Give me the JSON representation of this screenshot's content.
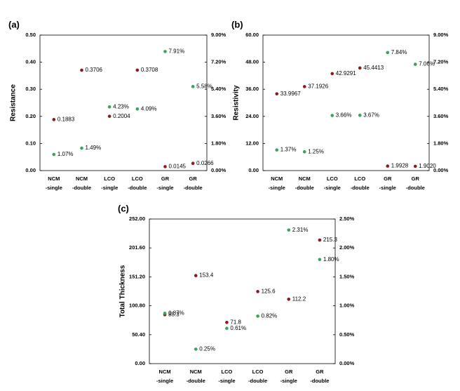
{
  "chart_data": [
    {
      "type": "scatter",
      "label": "(a)",
      "y_label": "Resistance",
      "categories": [
        [
          "NCM",
          "-single"
        ],
        [
          "NCM",
          "-double"
        ],
        [
          "LCO",
          "-single"
        ],
        [
          "LCO",
          "-double"
        ],
        [
          "GR",
          "-single"
        ],
        [
          "GR",
          "-double"
        ]
      ],
      "ylim": [
        0,
        0.5
      ],
      "yticks": [
        {
          "value": 0,
          "label": "0.00"
        },
        {
          "value": 0.1,
          "label": "0.10"
        },
        {
          "value": 0.2,
          "label": "0.20"
        },
        {
          "value": 0.3,
          "label": "0.30"
        },
        {
          "value": 0.4,
          "label": "0.40"
        },
        {
          "value": 0.5,
          "label": "0.50"
        }
      ],
      "y2lim": [
        0,
        9
      ],
      "y2ticks": [
        {
          "value": 0,
          "label": "0.00%"
        },
        {
          "value": 1.8,
          "label": "1.80%"
        },
        {
          "value": 3.6,
          "label": "3.60%"
        },
        {
          "value": 5.4,
          "label": "5.40%"
        },
        {
          "value": 7.2,
          "label": "7.20%"
        },
        {
          "value": 9,
          "label": "9.00%"
        }
      ],
      "series": [
        {
          "color": "#8b1a1a",
          "values": [
            0.1883,
            0.3706,
            0.2004,
            0.3708,
            0.0145,
            0.0266
          ]
        },
        {
          "color": "#3aa35a",
          "axis": "y2",
          "values": [
            1.07,
            1.49,
            4.23,
            4.09,
            7.91,
            5.58
          ],
          "value_labels": [
            "1.07%",
            "1.49%",
            "4.23%",
            "4.09%",
            "7.91%",
            "5.58%"
          ]
        }
      ]
    },
    {
      "type": "scatter",
      "label": "(b)",
      "y_label": "Resistivity",
      "categories": [
        [
          "NCM",
          "-single"
        ],
        [
          "NCM",
          "-double"
        ],
        [
          "LCO",
          "-single"
        ],
        [
          "LCO",
          "-double"
        ],
        [
          "GR",
          "-single"
        ],
        [
          "GR",
          "-double"
        ]
      ],
      "ylim": [
        0,
        60
      ],
      "yticks": [
        {
          "value": 0,
          "label": "0.00"
        },
        {
          "value": 12,
          "label": "12.00"
        },
        {
          "value": 24,
          "label": "24.00"
        },
        {
          "value": 36,
          "label": "36.00"
        },
        {
          "value": 48,
          "label": "48.00"
        },
        {
          "value": 60,
          "label": "60.00"
        }
      ],
      "y2lim": [
        0,
        9
      ],
      "y2ticks": [
        {
          "value": 0,
          "label": "0.00%"
        },
        {
          "value": 1.8,
          "label": "1.80%"
        },
        {
          "value": 3.6,
          "label": "3.60%"
        },
        {
          "value": 5.4,
          "label": "5.40%"
        },
        {
          "value": 7.2,
          "label": "7.20%"
        },
        {
          "value": 9,
          "label": "9.00%"
        }
      ],
      "series": [
        {
          "color": "#8b1a1a",
          "values": [
            33.9967,
            37.1926,
            42.9291,
            45.4413,
            1.9928,
            1.902
          ],
          "value_labels": [
            "33.9967",
            "37.1926",
            "42.9291",
            "45.4413",
            "1.9928",
            "1.9020"
          ]
        },
        {
          "color": "#3aa35a",
          "axis": "y2",
          "values": [
            1.37,
            1.25,
            3.66,
            3.67,
            7.84,
            7.06
          ],
          "value_labels": [
            "1.37%",
            "1.25%",
            "3.66%",
            "3.67%",
            "7.84%",
            "7.06%"
          ]
        }
      ]
    },
    {
      "type": "scatter",
      "label": "(c)",
      "y_label": "Total Thickness",
      "categories": [
        [
          "NCM",
          "-single"
        ],
        [
          "NCM",
          "-double"
        ],
        [
          "LCO",
          "-single"
        ],
        [
          "LCO",
          "-double"
        ],
        [
          "GR",
          "-single"
        ],
        [
          "GR",
          "-double"
        ]
      ],
      "ylim": [
        0,
        252
      ],
      "yticks": [
        {
          "value": 0,
          "label": "0.00"
        },
        {
          "value": 50.4,
          "label": "50.40"
        },
        {
          "value": 100.8,
          "label": "100.80"
        },
        {
          "value": 151.2,
          "label": "151.20"
        },
        {
          "value": 201.6,
          "label": "201.60"
        },
        {
          "value": 252,
          "label": "252.00"
        }
      ],
      "y2lim": [
        0,
        2.5
      ],
      "y2ticks": [
        {
          "value": 0,
          "label": "0.00%"
        },
        {
          "value": 0.5,
          "label": "0.50%"
        },
        {
          "value": 1,
          "label": "1.00%"
        },
        {
          "value": 1.5,
          "label": "1.50%"
        },
        {
          "value": 2,
          "label": "2.00%"
        },
        {
          "value": 2.5,
          "label": "2.50%"
        }
      ],
      "series": [
        {
          "color": "#8b1a1a",
          "values": [
            85.3,
            153.4,
            71.8,
            125.6,
            112.2,
            215.3
          ]
        },
        {
          "color": "#3aa35a",
          "axis": "y2",
          "values": [
            0.87,
            0.25,
            0.61,
            0.82,
            2.31,
            1.8
          ],
          "value_labels": [
            "0.87%",
            "0.25%",
            "0.61%",
            "0.82%",
            "2.31%",
            "1.80%"
          ]
        }
      ]
    }
  ]
}
